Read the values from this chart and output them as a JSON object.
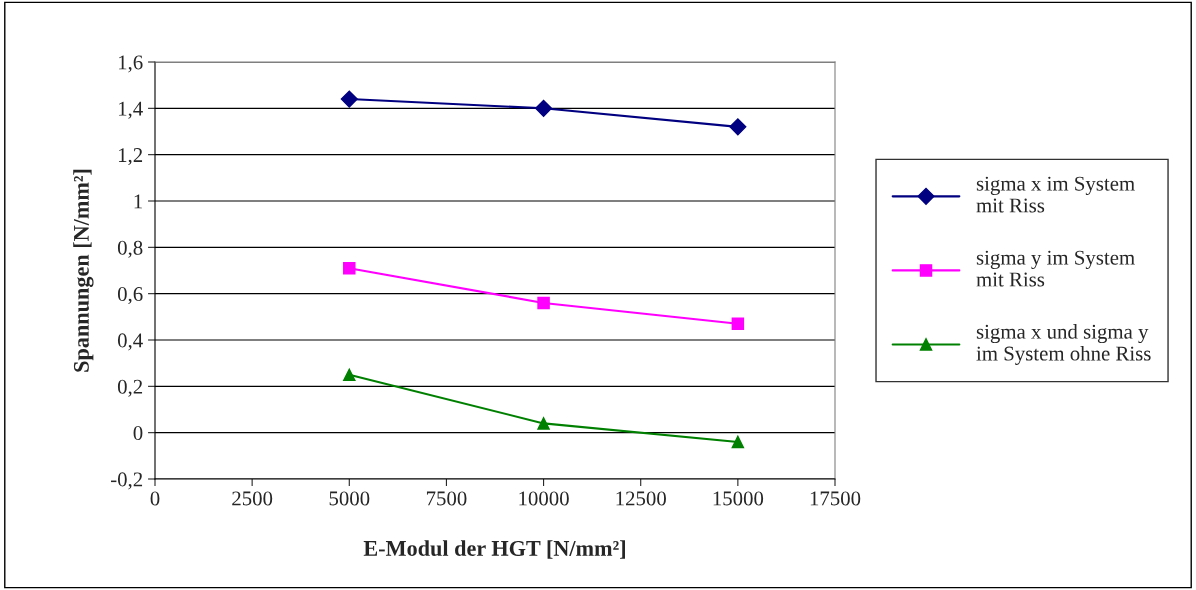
{
  "chart_data": {
    "type": "line",
    "xlabel": "E-Modul der HGT [N/mm²]",
    "ylabel": "Spannungen [N/mm²]",
    "x": [
      5000,
      10000,
      15000
    ],
    "series": [
      {
        "name": "sigma x im System\nmit Riss",
        "color": "#000080",
        "marker": "diamond",
        "values": [
          1.44,
          1.4,
          1.32
        ]
      },
      {
        "name": "sigma y im System\nmit Riss",
        "color": "#ff00ff",
        "marker": "square",
        "values": [
          0.71,
          0.56,
          0.47
        ]
      },
      {
        "name": "sigma x und sigma y\nim System ohne Riss",
        "color": "#008000",
        "marker": "triangle",
        "values": [
          0.25,
          0.04,
          -0.04
        ]
      }
    ],
    "xlim": [
      0,
      17500
    ],
    "xticks": [
      {
        "value": 0,
        "label": "0"
      },
      {
        "value": 2500,
        "label": "2500"
      },
      {
        "value": 5000,
        "label": "5000"
      },
      {
        "value": 7500,
        "label": "7500"
      },
      {
        "value": 10000,
        "label": "10000"
      },
      {
        "value": 12500,
        "label": "12500"
      },
      {
        "value": 15000,
        "label": "15000"
      },
      {
        "value": 17500,
        "label": "17500"
      }
    ],
    "ylim": [
      -0.2,
      1.6
    ],
    "yticks": [
      {
        "value": -0.2,
        "label": "-0,2"
      },
      {
        "value": 0,
        "label": "0"
      },
      {
        "value": 0.2,
        "label": "0,2"
      },
      {
        "value": 0.4,
        "label": "0,4"
      },
      {
        "value": 0.6,
        "label": "0,6"
      },
      {
        "value": 0.8,
        "label": "0,8"
      },
      {
        "value": 1,
        "label": "1"
      },
      {
        "value": 1.2,
        "label": "1,2"
      },
      {
        "value": 1.4,
        "label": "1,4"
      },
      {
        "value": 1.6,
        "label": "1,6"
      }
    ],
    "grid": "y",
    "legend": "right"
  }
}
